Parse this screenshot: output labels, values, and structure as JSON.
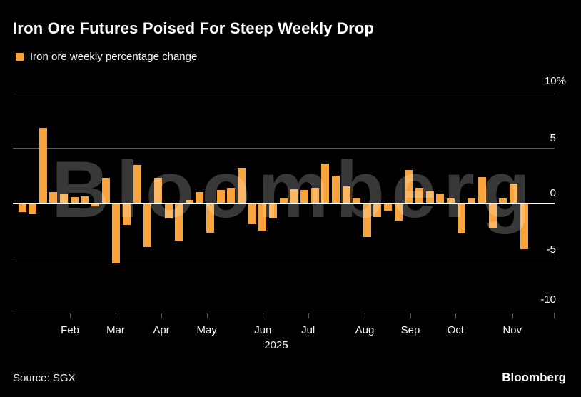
{
  "header": {
    "title": "Iron Ore Futures Poised For Steep Weekly Drop",
    "legend_label": "Iron ore weekly percentage change",
    "legend_color": "#F9A33C"
  },
  "chart_data": {
    "type": "bar",
    "title": "Iron Ore Futures Poised For Steep Weekly Drop",
    "series_name": "Iron ore weekly percentage change",
    "x_frequency": "weekly",
    "year": "2025",
    "values": [
      -0.8,
      -1.0,
      6.9,
      1.0,
      0.8,
      0.55,
      0.65,
      -0.3,
      2.3,
      -5.5,
      -2.0,
      3.5,
      -4.0,
      2.3,
      -1.4,
      -3.4,
      0.3,
      1.0,
      -2.7,
      1.2,
      1.4,
      3.2,
      -1.9,
      -2.5,
      -1.4,
      0.45,
      1.3,
      1.2,
      1.4,
      3.6,
      2.5,
      1.5,
      0.4,
      -3.1,
      -1.3,
      -0.7,
      -1.6,
      3.0,
      1.4,
      1.1,
      0.85,
      0.45,
      -2.8,
      0.45,
      2.4,
      -2.3,
      0.45,
      1.8,
      -4.2
    ],
    "bar_color": "#F9A33C",
    "ylabel": "",
    "xlabel": "",
    "ylim": [
      -10,
      10
    ],
    "grid": true,
    "y_tick_labels": [
      "10%",
      "5",
      "0",
      "-5",
      "-10"
    ],
    "y_tick_values": [
      10,
      5,
      0,
      -5,
      -10
    ],
    "month_labels": [
      "Feb",
      "Mar",
      "Apr",
      "May",
      "Jun",
      "Jul",
      "Aug",
      "Sep",
      "Oct",
      "Nov"
    ],
    "watermark": "Bloomberg"
  },
  "footer": {
    "source": "Source: SGX",
    "brand": "Bloomberg"
  }
}
